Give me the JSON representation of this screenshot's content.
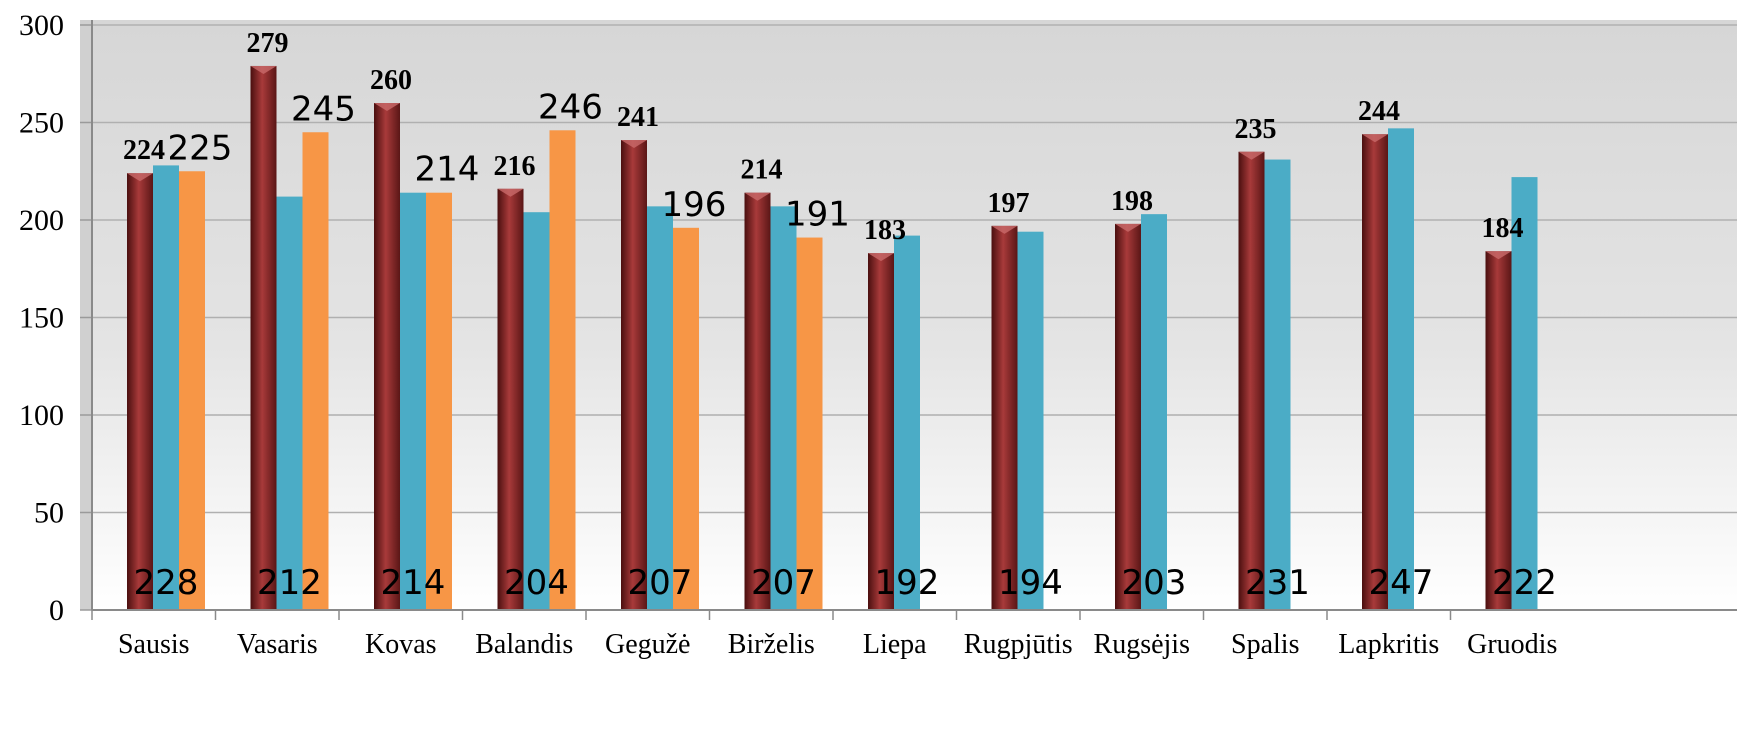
{
  "chart_data": {
    "type": "bar",
    "categories": [
      "Sausis",
      "Vasaris",
      "Kovas",
      "Balandis",
      "Gegužė",
      "Birželis",
      "Liepa",
      "Rugpjūtis",
      "Rugsėjis",
      "Spalis",
      "Lapkritis",
      "Gruodis"
    ],
    "series": [
      {
        "values": [
          224,
          279,
          260,
          216,
          241,
          214,
          183,
          197,
          198,
          235,
          244,
          184
        ],
        "color": "#8B2A2A"
      },
      {
        "values": [
          228,
          212,
          214,
          204,
          207,
          207,
          192,
          194,
          203,
          231,
          247,
          222
        ],
        "color": "#4BACC6"
      },
      {
        "values": [
          225,
          245,
          214,
          246,
          196,
          191,
          null,
          null,
          null,
          null,
          null,
          null
        ],
        "color": "#F79646"
      }
    ],
    "title": "",
    "xlabel": "",
    "ylabel": "",
    "ylim": [
      0,
      300
    ],
    "yticks": [
      0,
      50,
      100,
      150,
      200,
      250,
      300
    ],
    "grid": true,
    "legend": "none"
  }
}
